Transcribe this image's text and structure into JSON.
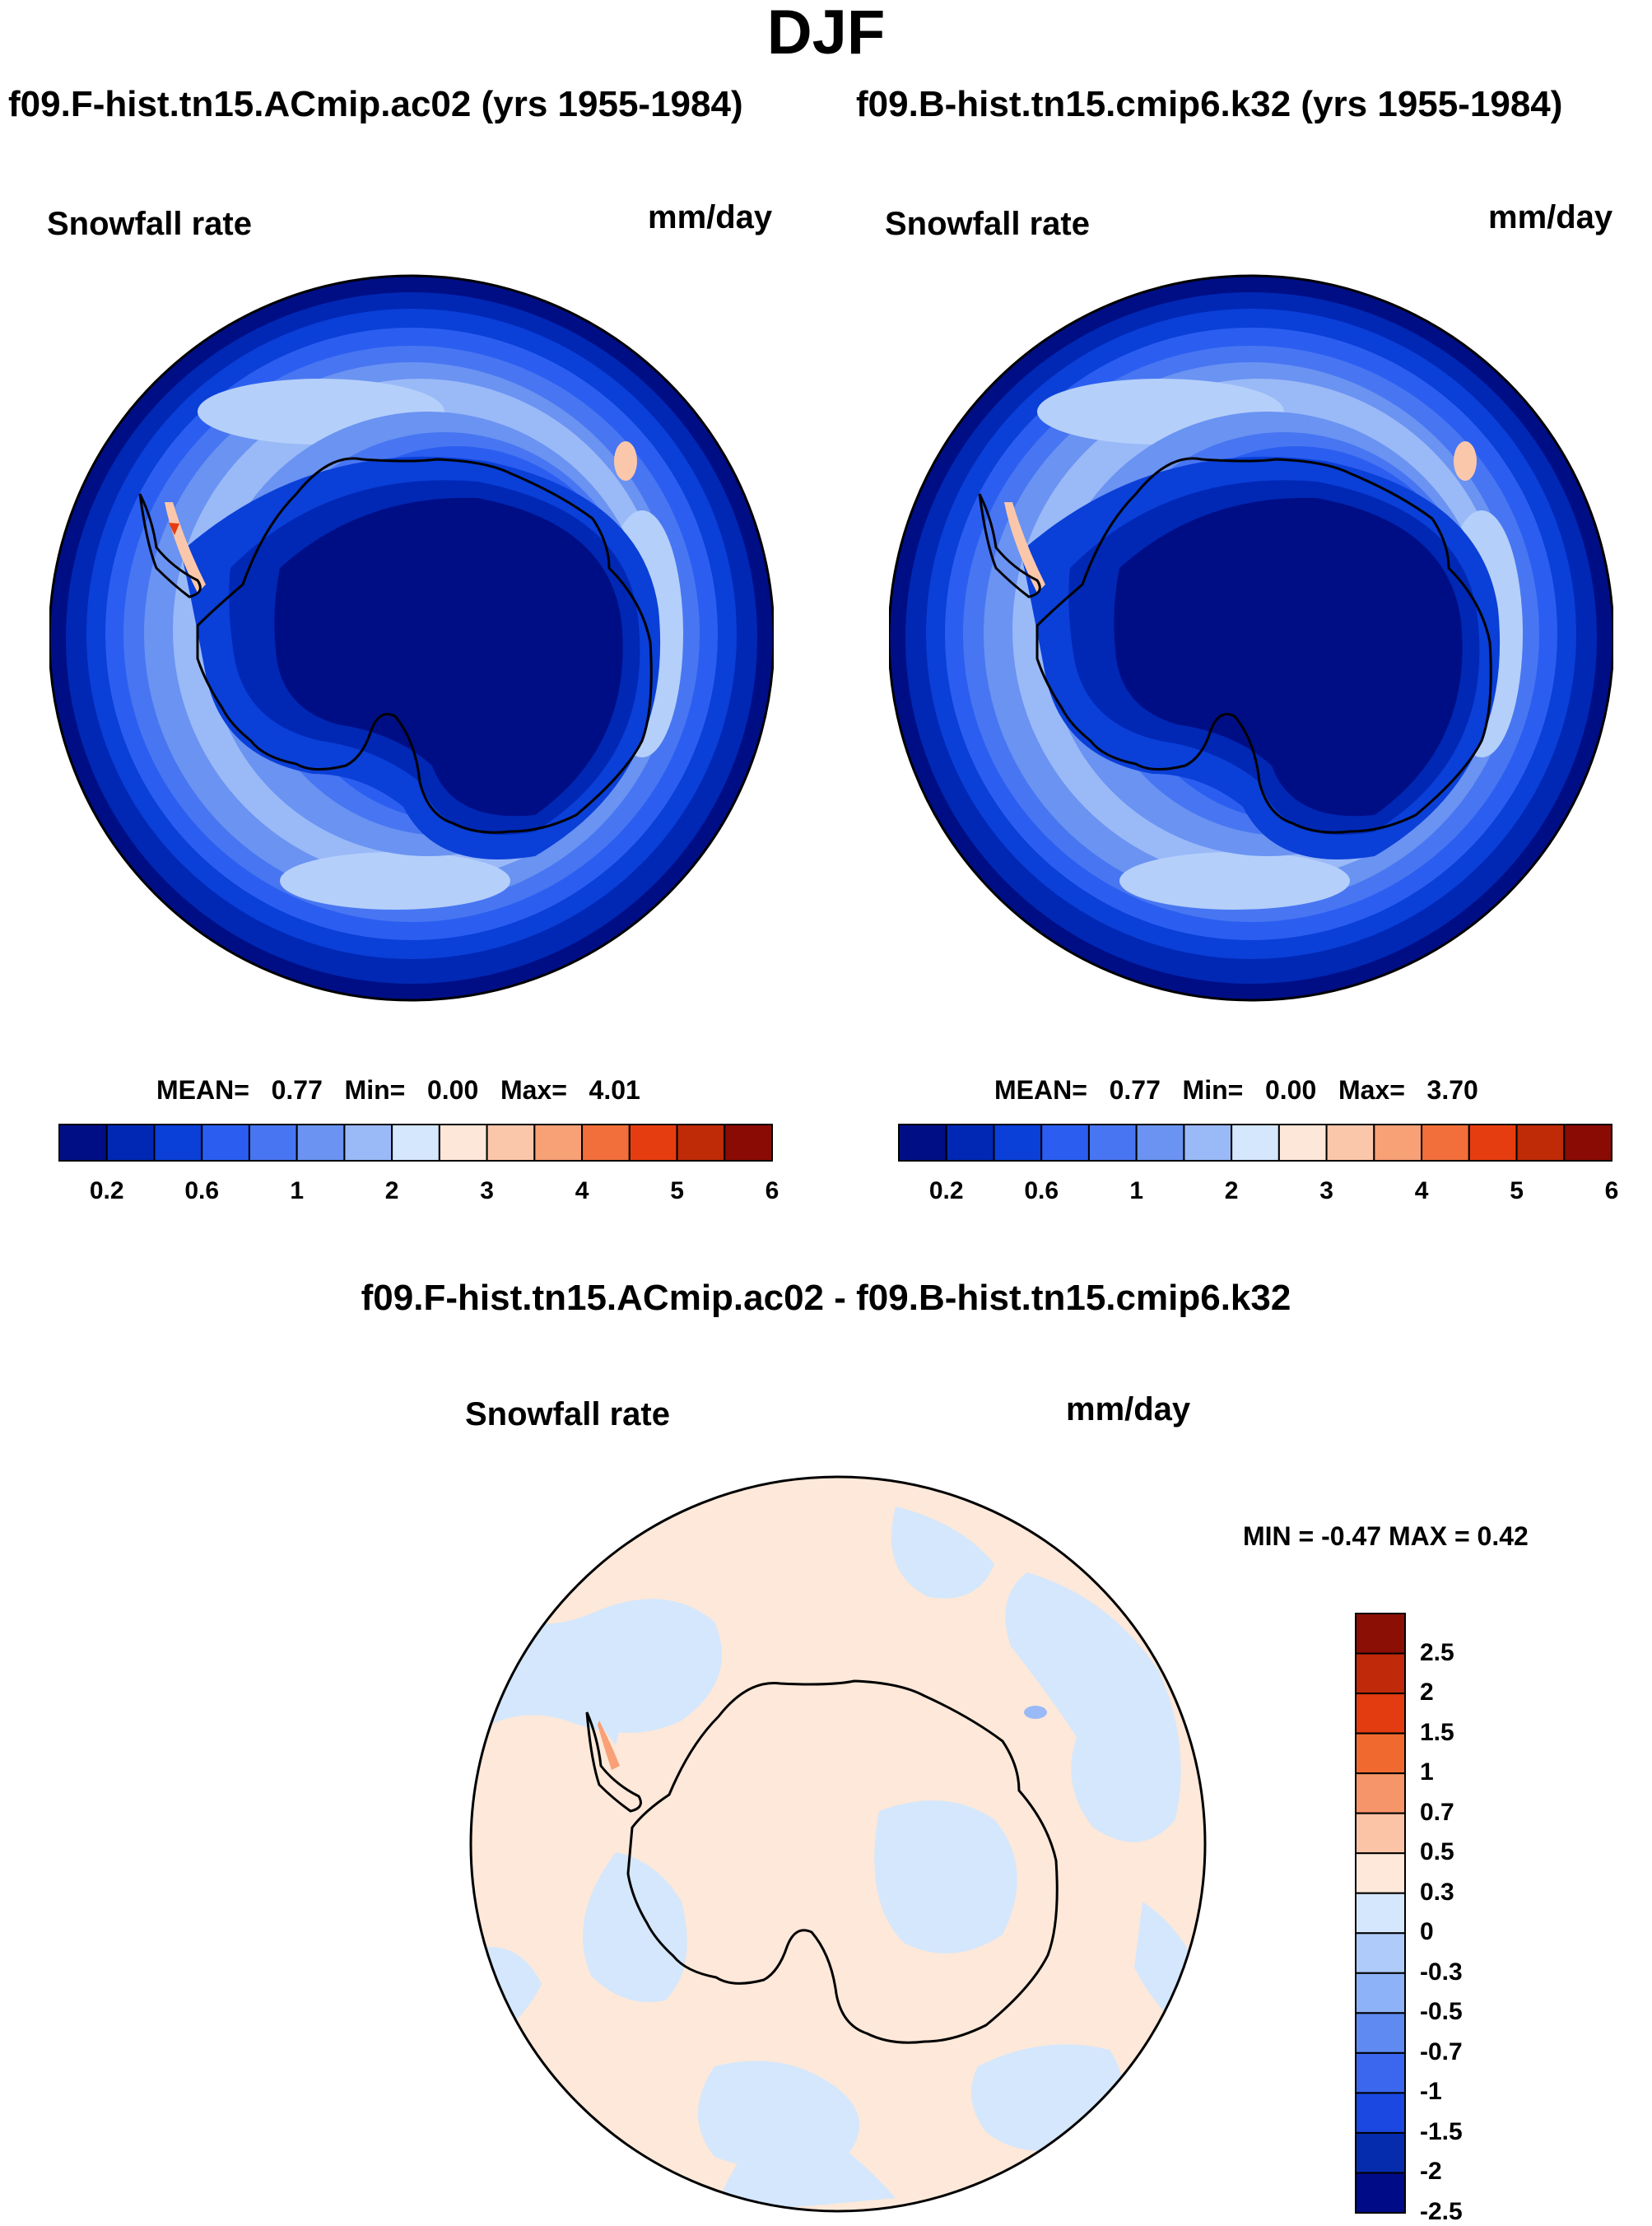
{
  "figure_title": "DJF",
  "panels": [
    {
      "case_title": "f09.F-hist.tn15.ACmip.ac02 (yrs 1955-1984)",
      "variable": "Snowfall rate",
      "units": "mm/day",
      "stats": {
        "mean_label": "MEAN=",
        "mean": "0.77",
        "min_label": "Min=",
        "min": "0.00",
        "max_label": "Max=",
        "max": "4.01"
      }
    },
    {
      "case_title": "f09.B-hist.tn15.cmip6.k32 (yrs 1955-1984)",
      "variable": "Snowfall rate",
      "units": "mm/day",
      "stats": {
        "mean_label": "MEAN=",
        "mean": "0.77",
        "min_label": "Min=",
        "min": "0.00",
        "max_label": "Max=",
        "max": "3.70"
      }
    }
  ],
  "diff_panel": {
    "title": "f09.F-hist.tn15.ACmip.ac02 - f09.B-hist.tn15.cmip6.k32",
    "variable": "Snowfall rate",
    "units": "mm/day",
    "minmax": "MIN =  -0.47 MAX =   0.42"
  },
  "colorbar_abs": {
    "colors": [
      "#000e86",
      "#0028b4",
      "#0a3fd8",
      "#2b5ef0",
      "#4876f2",
      "#6a93f2",
      "#9ab9f7",
      "#d4e7fc",
      "#fde7d8",
      "#fbc7aa",
      "#f8a076",
      "#f26e3a",
      "#e63d10",
      "#bf2a07",
      "#8a0b04"
    ],
    "tick_labels": [
      "0.2",
      "0.6",
      "1",
      "2",
      "3",
      "4",
      "5",
      "6"
    ],
    "tick_positions": [
      1,
      3,
      5,
      7,
      9,
      11,
      13,
      15
    ]
  },
  "colorbar_diff": {
    "colors_top_to_bottom": [
      "#8b0f05",
      "#c0290a",
      "#e23c10",
      "#f06a30",
      "#f7956a",
      "#fbc4a6",
      "#fde8d9",
      "#d4e7fc",
      "#aecbfa",
      "#8db2f7",
      "#5e8af2",
      "#3a67ee",
      "#1a48e0",
      "#062cae",
      "#000b88"
    ],
    "tick_labels_top_to_bottom": [
      "2.5",
      "2",
      "1.5",
      "1",
      "0.7",
      "0.5",
      "0.3",
      "0",
      "-0.3",
      "-0.5",
      "-0.7",
      "-1",
      "-1.5",
      "-2",
      "-2.5"
    ]
  },
  "colors": {
    "ocean_deep": "#000e86",
    "interior": "#000e86",
    "diff_pos": "#fde8d9",
    "diff_neg": "#d4e7fc"
  }
}
